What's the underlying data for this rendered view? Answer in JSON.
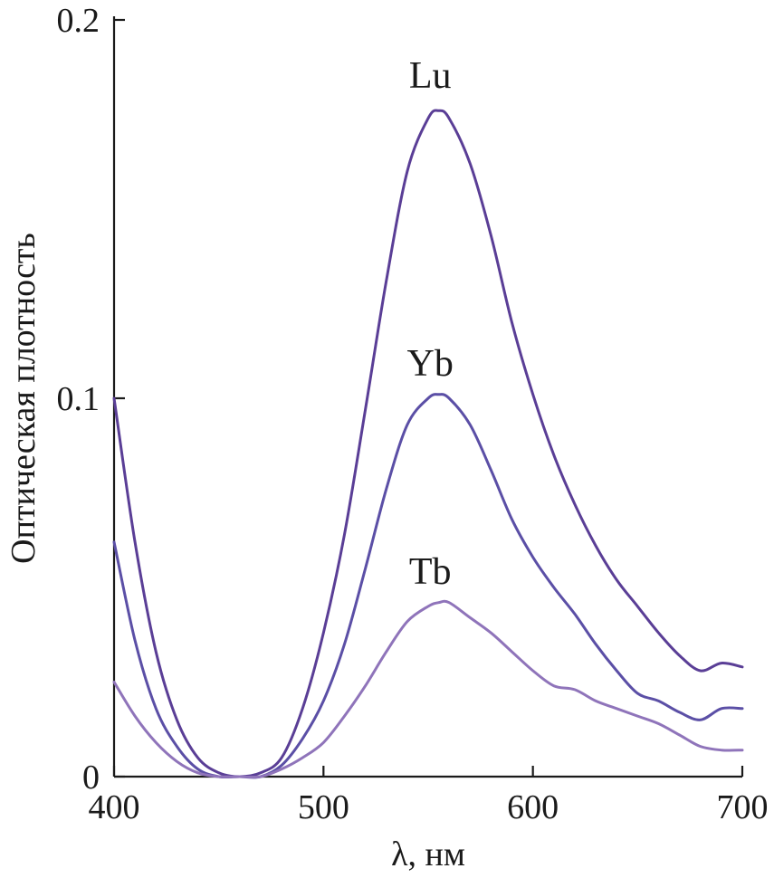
{
  "chart_data": {
    "type": "line",
    "title": "",
    "xlabel": "λ, нм",
    "ylabel": "Оптическая плотность",
    "xlim": [
      400,
      700
    ],
    "ylim": [
      0,
      0.2
    ],
    "x_ticks": [
      400,
      500,
      600,
      700
    ],
    "x_tick_labels": [
      "400",
      "500",
      "600",
      "700"
    ],
    "y_ticks": [
      0,
      0.1,
      0.2
    ],
    "y_tick_labels": [
      "0",
      "0.1",
      "0.2"
    ],
    "grid": false,
    "legend": "inline labels above curve peaks",
    "series": [
      {
        "name": "Lu",
        "color": "#5a3e96",
        "label_at": [
          557,
          0.182
        ],
        "x": [
          400,
          410,
          420,
          430,
          440,
          450,
          460,
          470,
          480,
          490,
          500,
          510,
          520,
          530,
          540,
          550,
          555,
          560,
          570,
          580,
          590,
          600,
          610,
          620,
          630,
          640,
          650,
          660,
          670,
          680,
          690,
          700
        ],
        "y": [
          0.1,
          0.062,
          0.033,
          0.015,
          0.005,
          0.001,
          0.0,
          0.001,
          0.005,
          0.018,
          0.038,
          0.064,
          0.097,
          0.131,
          0.16,
          0.174,
          0.176,
          0.174,
          0.162,
          0.143,
          0.12,
          0.101,
          0.085,
          0.072,
          0.061,
          0.052,
          0.045,
          0.038,
          0.032,
          0.028,
          0.03,
          0.029
        ]
      },
      {
        "name": "Yb",
        "color": "#5b4fa6",
        "label_at": [
          557,
          0.106
        ],
        "x": [
          400,
          410,
          420,
          430,
          440,
          450,
          460,
          470,
          480,
          490,
          500,
          510,
          520,
          530,
          540,
          550,
          555,
          560,
          570,
          580,
          590,
          600,
          610,
          620,
          630,
          640,
          650,
          660,
          670,
          680,
          690,
          700
        ],
        "y": [
          0.062,
          0.036,
          0.018,
          0.008,
          0.002,
          0.0,
          0.0,
          0.0,
          0.003,
          0.01,
          0.02,
          0.035,
          0.055,
          0.076,
          0.093,
          0.1,
          0.101,
          0.1,
          0.093,
          0.081,
          0.068,
          0.058,
          0.05,
          0.043,
          0.035,
          0.028,
          0.022,
          0.02,
          0.017,
          0.015,
          0.018,
          0.018
        ]
      },
      {
        "name": "Tb",
        "color": "#8f74ba",
        "label_at": [
          557,
          0.051
        ],
        "x": [
          400,
          410,
          420,
          430,
          440,
          450,
          460,
          470,
          480,
          490,
          500,
          510,
          520,
          530,
          540,
          550,
          555,
          560,
          570,
          580,
          590,
          600,
          610,
          620,
          630,
          640,
          650,
          660,
          670,
          680,
          690,
          700
        ],
        "y": [
          0.025,
          0.016,
          0.009,
          0.004,
          0.001,
          0.0,
          0.0,
          0.0,
          0.002,
          0.005,
          0.009,
          0.016,
          0.024,
          0.033,
          0.041,
          0.045,
          0.046,
          0.046,
          0.042,
          0.038,
          0.033,
          0.028,
          0.024,
          0.023,
          0.02,
          0.018,
          0.016,
          0.014,
          0.011,
          0.008,
          0.007,
          0.007
        ]
      }
    ]
  }
}
